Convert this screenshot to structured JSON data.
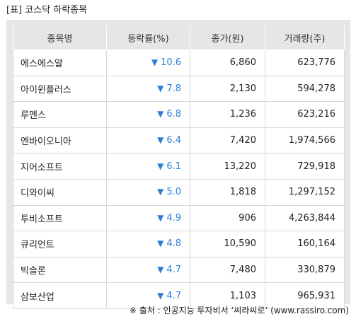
{
  "title": "[표] 코스닥 하락종목",
  "headers": [
    "종목명",
    "등락률(%)",
    "종가(원)",
    "거래량(주)"
  ],
  "down_marker": "▼",
  "rows": [
    {
      "name": "에스에스알",
      "rate": "10.6",
      "price": "6,860",
      "volume": "623,776"
    },
    {
      "name": "아이윈플러스",
      "rate": "7.8",
      "price": "2,130",
      "volume": "594,278"
    },
    {
      "name": "루멘스",
      "rate": "6.8",
      "price": "1,236",
      "volume": "623,216"
    },
    {
      "name": "엔바이오니아",
      "rate": "6.4",
      "price": "7,420",
      "volume": "1,974,566"
    },
    {
      "name": "지어소프트",
      "rate": "6.1",
      "price": "13,220",
      "volume": "729,918"
    },
    {
      "name": "디와이씨",
      "rate": "5.0",
      "price": "1,818",
      "volume": "1,297,152"
    },
    {
      "name": "투비소프트",
      "rate": "4.9",
      "price": "906",
      "volume": "4,263,844"
    },
    {
      "name": "큐리언트",
      "rate": "4.8",
      "price": "10,590",
      "volume": "160,164"
    },
    {
      "name": "빅솔론",
      "rate": "4.7",
      "price": "7,480",
      "volume": "330,879"
    },
    {
      "name": "삼보산업",
      "rate": "4.7",
      "price": "1,103",
      "volume": "965,931"
    }
  ],
  "source": "※ 출처 : 인공지능 투자비서 ‘씨라씨로’ (www.rassiro.com)",
  "colors": {
    "down": "#2b7fd8",
    "header_bg": "#e6e6e6"
  }
}
